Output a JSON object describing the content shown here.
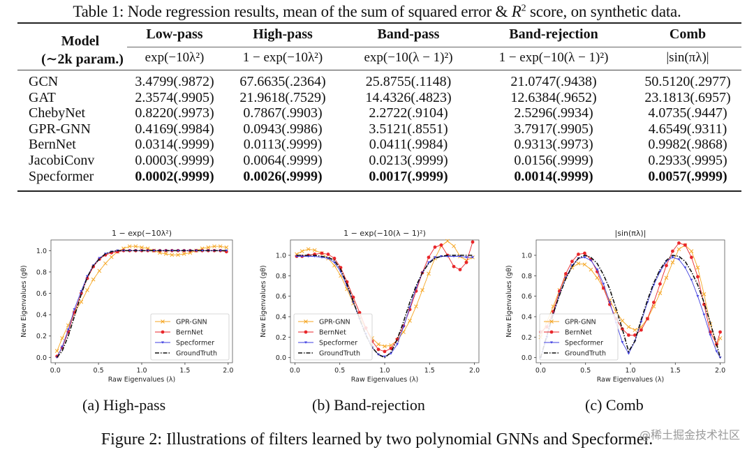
{
  "table": {
    "caption_prefix": "Table 1: Node regression results, mean of the sum of squared error & ",
    "caption_R": "R",
    "caption_sup": "2",
    "caption_suffix": " score, on synthetic data.",
    "model_header_line1": "Model",
    "model_header_line2": "(∼2k param.)",
    "columns": [
      {
        "name": "Low-pass",
        "formula": "exp(−10λ²)"
      },
      {
        "name": "High-pass",
        "formula": "1 − exp(−10λ²)"
      },
      {
        "name": "Band-pass",
        "formula": "exp(−10(λ − 1)²)"
      },
      {
        "name": "Band-rejection",
        "formula": "1 − exp(−10(λ − 1)²)"
      },
      {
        "name": "Comb",
        "formula": "|sin(πλ)|"
      }
    ],
    "rows": [
      {
        "model": "GCN",
        "cells": [
          "3.4799(.9872)",
          "67.6635(.2364)",
          "25.8755(.1148)",
          "21.0747(.9438)",
          "50.5120(.2977)"
        ]
      },
      {
        "model": "GAT",
        "cells": [
          "2.3574(.9905)",
          "21.9618(.7529)",
          "14.4326(.4823)",
          "12.6384(.9652)",
          "23.1813(.6957)"
        ]
      },
      {
        "model": "ChebyNet",
        "cells": [
          "0.8220(.9973)",
          "0.7867(.9903)",
          "2.2722(.9104)",
          "2.5296(.9934)",
          "4.0735(.9447)"
        ]
      },
      {
        "model": "GPR-GNN",
        "cells": [
          "0.4169(.9984)",
          "0.0943(.9986)",
          "3.5121(.8551)",
          "3.7917(.9905)",
          "4.6549(.9311)"
        ]
      },
      {
        "model": "BernNet",
        "cells": [
          "0.0314(.9999)",
          "0.0113(.9999)",
          "0.0411(.9984)",
          "0.9313(.9973)",
          "0.9982(.9868)"
        ]
      },
      {
        "model": "JacobiConv",
        "cells": [
          "0.0003(.9999)",
          "0.0064(.9999)",
          "0.0213(.9999)",
          "0.0156(.9999)",
          "0.2933(.9995)"
        ]
      },
      {
        "model": "Specformer",
        "cells": [
          "0.0002(.9999)",
          "0.0026(.9999)",
          "0.0017(.9999)",
          "0.0014(.9999)",
          "0.0057(.9999)"
        ],
        "bold": true
      }
    ]
  },
  "figure": {
    "caption": "Figure 2: Illustrations of filters learned by two polynomial GNNs and Specformer.",
    "subcaptions": [
      "(a) High-pass",
      "(b) Band-rejection",
      "(c) Comb"
    ],
    "watermark": "@稀土掘金技术社区"
  },
  "chart_data": [
    {
      "type": "line",
      "title": "1 − exp(−10λ²)",
      "xlabel": "Raw Eigenvalues (λ)",
      "ylabel": "New Eigenvalues (gθ)",
      "xlim": [
        -0.05,
        2.05
      ],
      "ylim": [
        -0.05,
        1.1
      ],
      "xticks": [
        "0.0",
        "0.5",
        "1.0",
        "1.5",
        "2.0"
      ],
      "yticks": [
        "0.0",
        "0.2",
        "0.4",
        "0.6",
        "0.8",
        "1.0"
      ],
      "legend": "lower-right",
      "grid": false,
      "x": [
        0.02,
        0.08,
        0.15,
        0.22,
        0.3,
        0.37,
        0.44,
        0.51,
        0.58,
        0.65,
        0.72,
        0.79,
        0.86,
        0.93,
        1.0,
        1.07,
        1.14,
        1.21,
        1.28,
        1.35,
        1.42,
        1.49,
        1.56,
        1.63,
        1.7,
        1.77,
        1.84,
        1.91,
        1.98
      ],
      "series": [
        {
          "name": "GPR-GNN",
          "color": "#f5a623",
          "marker": "x",
          "values": [
            0.06,
            0.18,
            0.3,
            0.42,
            0.52,
            0.63,
            0.73,
            0.81,
            0.88,
            0.94,
            0.99,
            1.02,
            1.04,
            1.04,
            1.03,
            1.02,
            1.0,
            0.98,
            0.97,
            0.96,
            0.96,
            0.97,
            0.98,
            1.0,
            1.02,
            1.03,
            1.04,
            1.04,
            1.03
          ]
        },
        {
          "name": "BernNet",
          "color": "#e8262a",
          "marker": "*",
          "values": [
            0.01,
            0.09,
            0.24,
            0.42,
            0.6,
            0.74,
            0.85,
            0.92,
            0.96,
            0.98,
            0.99,
            1.0,
            1.0,
            1.0,
            1.0,
            1.0,
            1.0,
            1.0,
            1.0,
            1.0,
            1.0,
            1.0,
            1.0,
            1.0,
            1.0,
            1.0,
            1.0,
            1.0,
            0.99
          ]
        },
        {
          "name": "Specformer",
          "color": "#3f3fe0",
          "marker": "v",
          "values": [
            0.0,
            0.1,
            0.26,
            0.45,
            0.62,
            0.76,
            0.86,
            0.93,
            0.97,
            0.99,
            1.0,
            1.0,
            1.0,
            1.0,
            1.0,
            1.0,
            1.0,
            1.0,
            1.0,
            1.0,
            1.0,
            1.0,
            1.0,
            1.0,
            1.0,
            1.0,
            1.0,
            1.0,
            1.0
          ]
        },
        {
          "name": "GroundTruth",
          "color": "#111111",
          "marker": "dashdot",
          "values": [
            0.0,
            0.06,
            0.2,
            0.38,
            0.59,
            0.75,
            0.86,
            0.92,
            0.97,
            0.99,
            1.0,
            1.0,
            1.0,
            1.0,
            1.0,
            1.0,
            1.0,
            1.0,
            1.0,
            1.0,
            1.0,
            1.0,
            1.0,
            1.0,
            1.0,
            1.0,
            1.0,
            1.0,
            1.0
          ]
        }
      ]
    },
    {
      "type": "line",
      "title": "1 − exp(−10(λ − 1)²)",
      "xlabel": "Raw Eigenvalues (λ)",
      "ylabel": "New Eigenvalues (gθ)",
      "xlim": [
        -0.05,
        2.05
      ],
      "ylim": [
        -0.05,
        1.15
      ],
      "xticks": [
        "0.0",
        "0.5",
        "1.0",
        "1.5",
        "2.0"
      ],
      "yticks": [
        "0.0",
        "0.2",
        "0.4",
        "0.6",
        "0.8",
        "1.0"
      ],
      "legend": "lower-left",
      "grid": false,
      "x": [
        0.02,
        0.08,
        0.15,
        0.22,
        0.3,
        0.37,
        0.44,
        0.51,
        0.58,
        0.65,
        0.72,
        0.79,
        0.86,
        0.93,
        1.0,
        1.07,
        1.14,
        1.21,
        1.28,
        1.35,
        1.42,
        1.49,
        1.56,
        1.63,
        1.7,
        1.77,
        1.84,
        1.91,
        1.98
      ],
      "series": [
        {
          "name": "GPR-GNN",
          "color": "#f5a623",
          "marker": "x",
          "values": [
            1.01,
            1.04,
            1.06,
            1.05,
            1.02,
            0.97,
            0.9,
            0.8,
            0.67,
            0.53,
            0.4,
            0.28,
            0.19,
            0.13,
            0.11,
            0.12,
            0.17,
            0.25,
            0.36,
            0.5,
            0.66,
            0.82,
            0.97,
            1.09,
            1.14,
            1.09,
            0.99,
            0.95,
            0.98
          ]
        },
        {
          "name": "BernNet",
          "color": "#e8262a",
          "marker": "*",
          "values": [
            0.99,
            0.99,
            1.0,
            1.01,
            1.02,
            1.01,
            0.97,
            0.88,
            0.74,
            0.59,
            0.44,
            0.29,
            0.16,
            0.08,
            0.06,
            0.09,
            0.18,
            0.31,
            0.47,
            0.65,
            0.83,
            0.98,
            1.08,
            1.1,
            1.0,
            0.89,
            0.86,
            0.93,
            1.13
          ]
        },
        {
          "name": "Specformer",
          "color": "#3f3fe0",
          "marker": "v",
          "values": [
            0.99,
            0.99,
            0.99,
            0.99,
            0.98,
            0.97,
            0.93,
            0.84,
            0.7,
            0.54,
            0.38,
            0.23,
            0.1,
            0.03,
            0.01,
            0.04,
            0.13,
            0.3,
            0.49,
            0.68,
            0.83,
            0.93,
            0.98,
            0.99,
            0.99,
            0.99,
            0.99,
            0.98,
            0.98
          ]
        },
        {
          "name": "GroundTruth",
          "color": "#111111",
          "marker": "dashdot",
          "values": [
            1.0,
            1.0,
            1.0,
            1.0,
            0.99,
            0.98,
            0.95,
            0.86,
            0.72,
            0.55,
            0.38,
            0.22,
            0.1,
            0.03,
            0.0,
            0.05,
            0.18,
            0.35,
            0.54,
            0.7,
            0.83,
            0.92,
            0.97,
            0.99,
            1.0,
            1.0,
            1.0,
            1.0,
            1.0
          ]
        }
      ]
    },
    {
      "type": "line",
      "title": "|sin(πλ)|",
      "xlabel": "Raw Eigenvalues (λ)",
      "ylabel": "New Eigenvalues (gθ)",
      "xlim": [
        -0.05,
        2.05
      ],
      "ylim": [
        -0.05,
        1.15
      ],
      "xticks": [
        "0.0",
        "0.5",
        "1.0",
        "1.5",
        "2.0"
      ],
      "yticks": [
        "0.0",
        "0.2",
        "0.4",
        "0.6",
        "0.8",
        "1.0"
      ],
      "legend": "lower-left",
      "grid": false,
      "x": [
        0.0,
        0.07,
        0.14,
        0.21,
        0.28,
        0.35,
        0.42,
        0.49,
        0.56,
        0.63,
        0.7,
        0.77,
        0.84,
        0.91,
        0.98,
        1.05,
        1.12,
        1.19,
        1.26,
        1.33,
        1.4,
        1.47,
        1.54,
        1.61,
        1.68,
        1.75,
        1.82,
        1.89,
        1.96,
        2.0
      ],
      "series": [
        {
          "name": "GPR-GNN",
          "color": "#f5a623",
          "marker": "x",
          "values": [
            0.2,
            0.35,
            0.5,
            0.66,
            0.79,
            0.88,
            0.92,
            0.91,
            0.86,
            0.78,
            0.68,
            0.56,
            0.45,
            0.36,
            0.3,
            0.27,
            0.3,
            0.38,
            0.5,
            0.63,
            0.78,
            0.93,
            1.06,
            1.1,
            1.04,
            0.88,
            0.62,
            0.33,
            0.12,
            0.19
          ]
        },
        {
          "name": "BernNet",
          "color": "#e8262a",
          "marker": "*",
          "values": [
            0.25,
            0.3,
            0.45,
            0.65,
            0.82,
            0.94,
            1.01,
            1.02,
            0.96,
            0.84,
            0.68,
            0.52,
            0.38,
            0.28,
            0.22,
            0.22,
            0.27,
            0.38,
            0.54,
            0.72,
            0.9,
            1.04,
            1.12,
            1.1,
            0.98,
            0.79,
            0.52,
            0.25,
            0.13,
            0.25
          ]
        },
        {
          "name": "Specformer",
          "color": "#3f3fe0",
          "marker": "v",
          "values": [
            0.0,
            0.2,
            0.42,
            0.62,
            0.78,
            0.9,
            0.97,
            0.98,
            0.95,
            0.86,
            0.72,
            0.54,
            0.34,
            0.15,
            0.04,
            0.16,
            0.35,
            0.54,
            0.71,
            0.84,
            0.94,
            0.98,
            0.96,
            0.88,
            0.76,
            0.6,
            0.42,
            0.22,
            0.06,
            0.0
          ]
        },
        {
          "name": "GroundTruth",
          "color": "#111111",
          "marker": "dashdot",
          "values": [
            0.0,
            0.22,
            0.43,
            0.61,
            0.77,
            0.89,
            0.97,
            1.0,
            0.98,
            0.92,
            0.81,
            0.67,
            0.48,
            0.28,
            0.06,
            0.16,
            0.37,
            0.56,
            0.73,
            0.86,
            0.95,
            1.0,
            0.99,
            0.94,
            0.84,
            0.71,
            0.54,
            0.34,
            0.13,
            0.0
          ]
        }
      ]
    }
  ]
}
